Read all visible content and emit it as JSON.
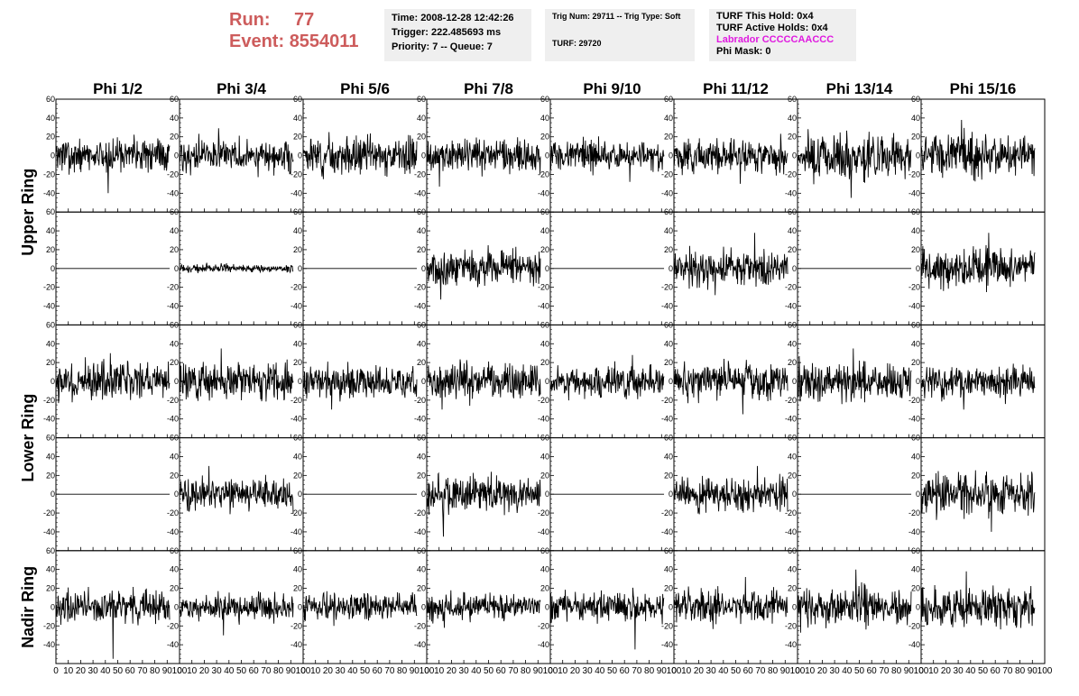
{
  "header": {
    "run_label": "Run:",
    "run_value": "77",
    "event_label": "Event:",
    "event_value": "8554011",
    "time_line": "Time: 2008-12-28 12:42:26",
    "trigger_line": "Trigger: 222.485693 ms",
    "priority_line": "Priority: 7 -- Queue: 7",
    "trig_num_line": "Trig Num: 29711 -- Trig Type: Soft",
    "turf_line": "TURF: 29720",
    "turf_hold_line": "TURF This Hold: 0x4",
    "turf_active_line": "TURF Active Holds: 0x4",
    "labrador_line": "Labrador CCCCCAACCC",
    "phi_mask_line": "Phi Mask: 0",
    "labrador_color": "#e01ae0",
    "run_color": "#cd5c5c"
  },
  "chart_data": {
    "type": "line",
    "columns": [
      "Phi 1/2",
      "Phi 3/4",
      "Phi 5/6",
      "Phi 7/8",
      "Phi 9/10",
      "Phi 11/12",
      "Phi 13/14",
      "Phi 15/16"
    ],
    "ring_labels": [
      {
        "label": "Upper Ring",
        "rows": [
          0,
          1
        ]
      },
      {
        "label": "Lower Ring",
        "rows": [
          2,
          3
        ]
      },
      {
        "label": "Nadir Ring",
        "rows": [
          4
        ]
      }
    ],
    "xlim": [
      0,
      100
    ],
    "ylim": [
      -60,
      60
    ],
    "x_ticks": [
      "0",
      "10",
      "20",
      "30",
      "40",
      "50",
      "60",
      "70",
      "80",
      "90",
      "100"
    ],
    "y_ticks": [
      "-60",
      "-40",
      "-20",
      "0",
      "20",
      "40",
      "60"
    ],
    "rows": [
      {
        "row": 0,
        "panels": [
          {
            "amp": 12,
            "peak": -40,
            "seed": 1
          },
          {
            "amp": 12,
            "peak": 29,
            "seed": 2
          },
          {
            "amp": 13,
            "peak": 25,
            "seed": 3
          },
          {
            "amp": 12,
            "peak": -33,
            "seed": 4
          },
          {
            "amp": 11,
            "peak": -28,
            "seed": 5
          },
          {
            "amp": 12,
            "peak": -30,
            "seed": 6
          },
          {
            "amp": 16,
            "peak": -45,
            "seed": 7
          },
          {
            "amp": 15,
            "peak": 38,
            "seed": 8
          }
        ]
      },
      {
        "row": 1,
        "panels": [
          {
            "amp": 0,
            "peak": 0,
            "seed": 0
          },
          {
            "amp": 3,
            "peak": 6,
            "seed": 9
          },
          {
            "amp": 0,
            "peak": 0,
            "seed": 0
          },
          {
            "amp": 13,
            "peak": -33,
            "seed": 10
          },
          {
            "amp": 0,
            "peak": 0,
            "seed": 0
          },
          {
            "amp": 14,
            "peak": 38,
            "seed": 11
          },
          {
            "amp": 0,
            "peak": 0,
            "seed": 0
          },
          {
            "amp": 15,
            "peak": 38,
            "seed": 12
          }
        ]
      },
      {
        "row": 2,
        "panels": [
          {
            "amp": 14,
            "peak": 30,
            "seed": 13
          },
          {
            "amp": 13,
            "peak": 35,
            "seed": 14
          },
          {
            "amp": 12,
            "peak": -30,
            "seed": 15
          },
          {
            "amp": 13,
            "peak": -30,
            "seed": 16
          },
          {
            "amp": 11,
            "peak": 28,
            "seed": 17
          },
          {
            "amp": 13,
            "peak": -35,
            "seed": 18
          },
          {
            "amp": 15,
            "peak": 35,
            "seed": 19
          },
          {
            "amp": 12,
            "peak": -30,
            "seed": 20
          }
        ]
      },
      {
        "row": 3,
        "panels": [
          {
            "amp": 0,
            "peak": 0,
            "seed": 0
          },
          {
            "amp": 12,
            "peak": 30,
            "seed": 21
          },
          {
            "amp": 0,
            "peak": 0,
            "seed": 0
          },
          {
            "amp": 14,
            "peak": -45,
            "seed": 22
          },
          {
            "amp": 0,
            "peak": 0,
            "seed": 0
          },
          {
            "amp": 13,
            "peak": 30,
            "seed": 23
          },
          {
            "amp": 0,
            "peak": 0,
            "seed": 0
          },
          {
            "amp": 15,
            "peak": -40,
            "seed": 24
          }
        ]
      },
      {
        "row": 4,
        "panels": [
          {
            "amp": 12,
            "peak": -55,
            "seed": 25
          },
          {
            "amp": 10,
            "peak": -30,
            "seed": 26
          },
          {
            "amp": 10,
            "peak": -20,
            "seed": 27
          },
          {
            "amp": 10,
            "peak": -22,
            "seed": 28
          },
          {
            "amp": 11,
            "peak": -45,
            "seed": 29
          },
          {
            "amp": 13,
            "peak": 32,
            "seed": 30
          },
          {
            "amp": 14,
            "peak": 40,
            "seed": 31
          },
          {
            "amp": 14,
            "peak": 38,
            "seed": 32
          }
        ]
      }
    ]
  }
}
